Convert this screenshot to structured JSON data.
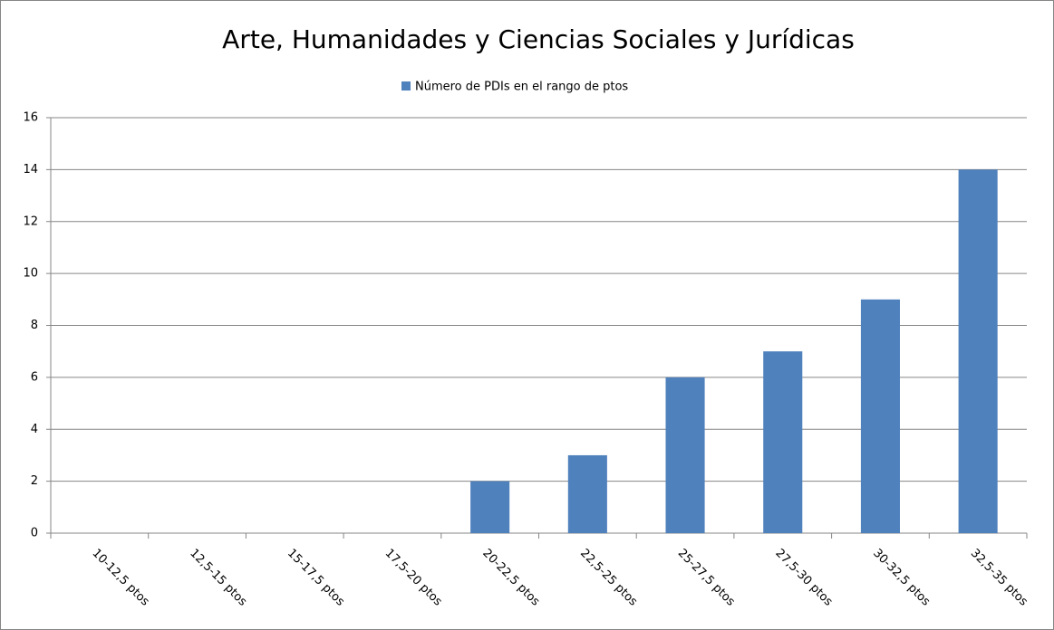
{
  "chart_data": {
    "type": "bar",
    "title": "Arte, Humanidades y Ciencias Sociales y Jurídicas",
    "categories": [
      "10-12,5 ptos",
      "12,5-15 ptos",
      "15-17,5 ptos",
      "17,5-20 ptos",
      "20-22,5 ptos",
      "22,5-25 ptos",
      "25-27,5 ptos",
      "27,5-30 ptos",
      "30-32,5 ptos",
      "32,5-35 ptos"
    ],
    "series": [
      {
        "name": "Número de PDIs en el rango de ptos",
        "color": "#4f81bd",
        "values": [
          0,
          0,
          0,
          0,
          2,
          3,
          6,
          7,
          9,
          14
        ]
      }
    ],
    "ylim": [
      0,
      16
    ],
    "yticks": [
      0,
      2,
      4,
      6,
      8,
      10,
      12,
      14,
      16
    ],
    "grid": true,
    "legend": "top"
  }
}
